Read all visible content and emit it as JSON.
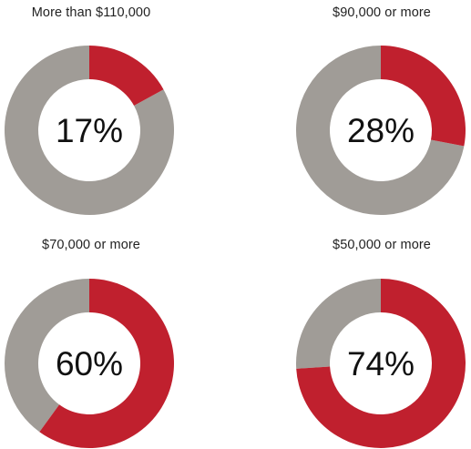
{
  "chart_data": [
    {
      "type": "pie",
      "title": "More than $110,000",
      "value": 17,
      "label": "17%"
    },
    {
      "type": "pie",
      "title": "$90,000 or more",
      "value": 28,
      "label": "28%"
    },
    {
      "type": "pie",
      "title": "$70,000 or more",
      "value": 60,
      "label": "60%"
    },
    {
      "type": "pie",
      "title": "$50,000 or more",
      "value": 74,
      "label": "74%"
    }
  ],
  "colors": {
    "highlight": "#c0202e",
    "remainder": "#a09c97",
    "center_text": "#111111"
  }
}
